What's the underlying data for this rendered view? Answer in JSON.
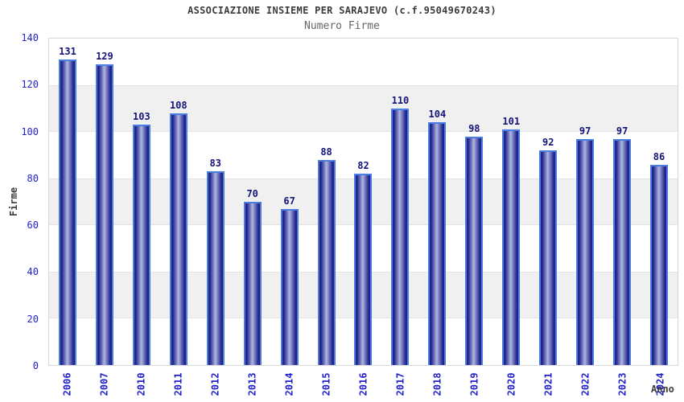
{
  "chart_data": {
    "type": "bar",
    "title": "ASSOCIAZIONE INSIEME PER SARAJEVO (c.f.95049670243)",
    "subtitle": "Numero Firme",
    "xlabel": "Anno",
    "ylabel": "Firme",
    "ylim": [
      0,
      140
    ],
    "ytick_step": 20,
    "yticks": [
      0,
      20,
      40,
      60,
      80,
      100,
      120,
      140
    ],
    "categories": [
      "2006",
      "2007",
      "2010",
      "2011",
      "2012",
      "2013",
      "2014",
      "2015",
      "2016",
      "2017",
      "2018",
      "2019",
      "2020",
      "2021",
      "2022",
      "2023",
      "2024"
    ],
    "values": [
      131,
      129,
      103,
      108,
      83,
      70,
      67,
      88,
      82,
      110,
      104,
      98,
      101,
      92,
      97,
      97,
      86
    ],
    "legend_position": "none",
    "grid": "alternating-horizontal-bands",
    "colors": {
      "bar_dark": "#1d1d84",
      "bar_highlight": "#b2b8e0",
      "bar_outline": "#4a7de0",
      "axis_tick_label": "#2222cc",
      "value_label": "#14147a",
      "band_gray": "#f0f0f0",
      "plot_border": "#d8d8d8",
      "title_text": "#3c3c3c",
      "subtitle_text": "#666666"
    }
  }
}
